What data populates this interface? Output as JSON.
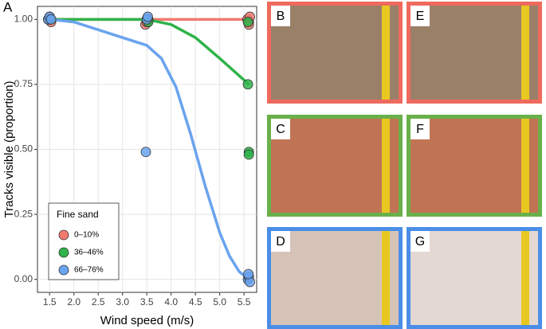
{
  "chart_data": {
    "type": "scatter",
    "panel_label": "A",
    "xlabel": "Wind speed (m/s)",
    "ylabel": "Tracks visible (proportion)",
    "xlim": [
      1.25,
      5.76
    ],
    "ylim": [
      -0.05,
      1.05
    ],
    "xticks": [
      1.5,
      {
        "value": 2,
        "label": "2.0"
      },
      2.5,
      {
        "value": 3,
        "label": "3.0"
      },
      3.5,
      {
        "value": 4,
        "label": "4.0"
      },
      4.5,
      {
        "value": 5,
        "label": "5.0"
      },
      5.5
    ],
    "yticks": [
      {
        "value": 0,
        "label": "0.00"
      },
      {
        "value": 0.25,
        "label": "0.25"
      },
      {
        "value": 0.5,
        "label": "0.50"
      },
      {
        "value": 0.75,
        "label": "0.75"
      },
      {
        "value": 1,
        "label": "1.00"
      }
    ],
    "grid": true,
    "legend": "bottom-left",
    "legend_title": "Fine sand",
    "series": [
      {
        "name": "0–10%",
        "color": "#f07a70",
        "x": [
          1.47,
          1.5,
          1.53,
          1.5,
          3.47,
          3.5,
          3.53,
          5.57,
          5.6,
          5.62,
          5.6
        ],
        "values": [
          1.0,
          1.01,
          0.99,
          1.0,
          0.98,
          0.99,
          1.0,
          1.0,
          0.99,
          1.01,
          0.98
        ],
        "curve": {
          "x": [
            1.5,
            2.5,
            3.5,
            4.5,
            5.6
          ],
          "values": [
            1.0,
            1.0,
            1.0,
            1.0,
            1.0
          ]
        }
      },
      {
        "name": "36–46%",
        "color": "#2fb34a",
        "x": [
          1.5,
          1.53,
          3.5,
          3.53,
          5.58,
          5.6,
          5.6,
          5.58
        ],
        "values": [
          1.0,
          1.0,
          1.0,
          0.99,
          0.75,
          0.49,
          0.48,
          0.99
        ],
        "curve": {
          "x": [
            1.5,
            2.5,
            3.5,
            4.0,
            4.5,
            5.0,
            5.3,
            5.6
          ],
          "values": [
            1.0,
            1.0,
            1.0,
            0.98,
            0.93,
            0.85,
            0.8,
            0.75
          ]
        }
      },
      {
        "name": "66–76%",
        "color": "#6aa3ee",
        "x": [
          1.47,
          1.5,
          1.53,
          3.5,
          3.52,
          3.48,
          5.58,
          5.6,
          5.62,
          5.59
        ],
        "values": [
          1.0,
          1.01,
          1.0,
          1.0,
          1.01,
          0.49,
          0.0,
          0.01,
          -0.01,
          0.02
        ],
        "curve": {
          "x": [
            1.5,
            2.0,
            2.5,
            3.0,
            3.5,
            3.8,
            4.1,
            4.4,
            4.7,
            5.0,
            5.2,
            5.4,
            5.6
          ],
          "values": [
            1.0,
            0.99,
            0.96,
            0.93,
            0.9,
            0.85,
            0.74,
            0.56,
            0.36,
            0.18,
            0.09,
            0.03,
            0.0
          ]
        }
      }
    ]
  },
  "panels": [
    {
      "label": "B",
      "color": "#ef6a5e",
      "photo": "#9b8069"
    },
    {
      "label": "E",
      "color": "#ef6a5e",
      "photo": "#9b8069"
    },
    {
      "label": "C",
      "color": "#6ab04a",
      "photo": "#c07453"
    },
    {
      "label": "F",
      "color": "#6ab04a",
      "photo": "#c07453"
    },
    {
      "label": "D",
      "color": "#4a8ee8",
      "photo": "#d6c3b8"
    },
    {
      "label": "G",
      "color": "#4a8ee8",
      "photo": "#e4d8d2"
    }
  ]
}
